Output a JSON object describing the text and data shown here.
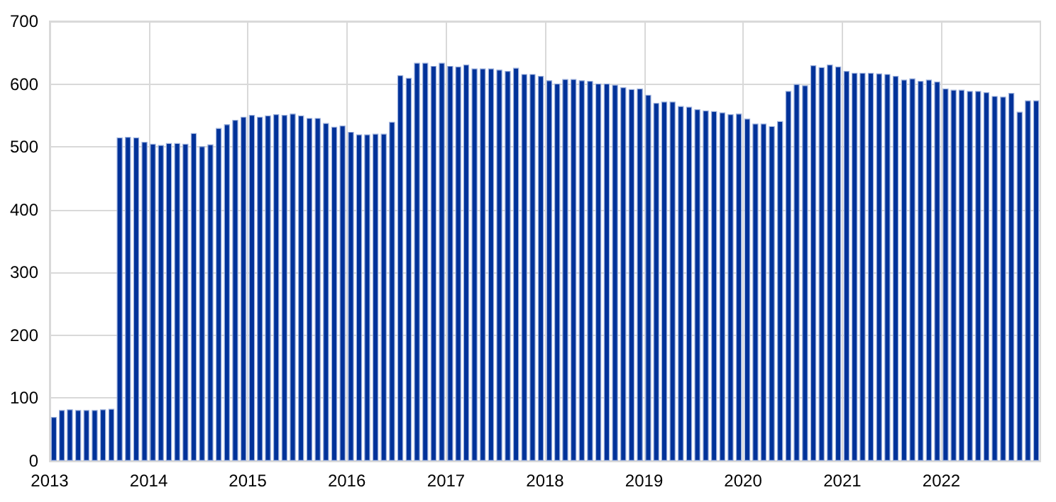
{
  "chart_data": {
    "type": "bar",
    "x": [
      "2013-01",
      "2013-02",
      "2013-03",
      "2013-04",
      "2013-05",
      "2013-06",
      "2013-07",
      "2013-08",
      "2013-09",
      "2013-10",
      "2013-11",
      "2013-12",
      "2014-01",
      "2014-02",
      "2014-03",
      "2014-04",
      "2014-05",
      "2014-06",
      "2014-07",
      "2014-08",
      "2014-09",
      "2014-10",
      "2014-11",
      "2014-12",
      "2015-01",
      "2015-02",
      "2015-03",
      "2015-04",
      "2015-05",
      "2015-06",
      "2015-07",
      "2015-08",
      "2015-09",
      "2015-10",
      "2015-11",
      "2015-12",
      "2016-01",
      "2016-02",
      "2016-03",
      "2016-04",
      "2016-05",
      "2016-06",
      "2016-07",
      "2016-08",
      "2016-09",
      "2016-10",
      "2016-11",
      "2016-12",
      "2017-01",
      "2017-02",
      "2017-03",
      "2017-04",
      "2017-05",
      "2017-06",
      "2017-07",
      "2017-08",
      "2017-09",
      "2017-10",
      "2017-11",
      "2017-12",
      "2018-01",
      "2018-02",
      "2018-03",
      "2018-04",
      "2018-05",
      "2018-06",
      "2018-07",
      "2018-08",
      "2018-09",
      "2018-10",
      "2018-11",
      "2018-12",
      "2019-01",
      "2019-02",
      "2019-03",
      "2019-04",
      "2019-05",
      "2019-06",
      "2019-07",
      "2019-08",
      "2019-09",
      "2019-10",
      "2019-11",
      "2019-12",
      "2020-01",
      "2020-02",
      "2020-03",
      "2020-04",
      "2020-05",
      "2020-06",
      "2020-07",
      "2020-08",
      "2020-09",
      "2020-10",
      "2020-11",
      "2020-12",
      "2021-01",
      "2021-02",
      "2021-03",
      "2021-04",
      "2021-05",
      "2021-06",
      "2021-07",
      "2021-08",
      "2021-09",
      "2021-10",
      "2021-11",
      "2021-12",
      "2022-01",
      "2022-02",
      "2022-03",
      "2022-04",
      "2022-05",
      "2022-06",
      "2022-07",
      "2022-08",
      "2022-09",
      "2022-10",
      "2022-11",
      "2022-12"
    ],
    "values": [
      70,
      81,
      82,
      81,
      81,
      81,
      82,
      83,
      515,
      516,
      515,
      508,
      505,
      503,
      506,
      506,
      505,
      522,
      501,
      504,
      530,
      536,
      543,
      548,
      551,
      548,
      550,
      552,
      551,
      553,
      550,
      546,
      546,
      538,
      532,
      534,
      524,
      520,
      520,
      521,
      521,
      540,
      614,
      610,
      634,
      634,
      629,
      634,
      629,
      628,
      631,
      625,
      625,
      625,
      623,
      621,
      626,
      616,
      616,
      613,
      606,
      601,
      608,
      608,
      606,
      605,
      601,
      601,
      599,
      595,
      592,
      593,
      583,
      570,
      572,
      572,
      565,
      564,
      560,
      558,
      557,
      555,
      552,
      553,
      545,
      537,
      537,
      533,
      541,
      589,
      600,
      598,
      630,
      627,
      631,
      628,
      621,
      618,
      618,
      618,
      617,
      616,
      613,
      607,
      609,
      605,
      607,
      604,
      593,
      591,
      591,
      589,
      589,
      587,
      581,
      580,
      586,
      556,
      574,
      574
    ],
    "color": "#003299",
    "xlim": [
      "2013-01",
      "2023-01"
    ],
    "xticks": [
      "2013",
      "2014",
      "2015",
      "2016",
      "2017",
      "2018",
      "2019",
      "2020",
      "2021",
      "2022"
    ],
    "ylim": [
      0,
      700
    ],
    "yticks": [
      0,
      100,
      200,
      300,
      400,
      500,
      600,
      700
    ],
    "grid": true
  }
}
